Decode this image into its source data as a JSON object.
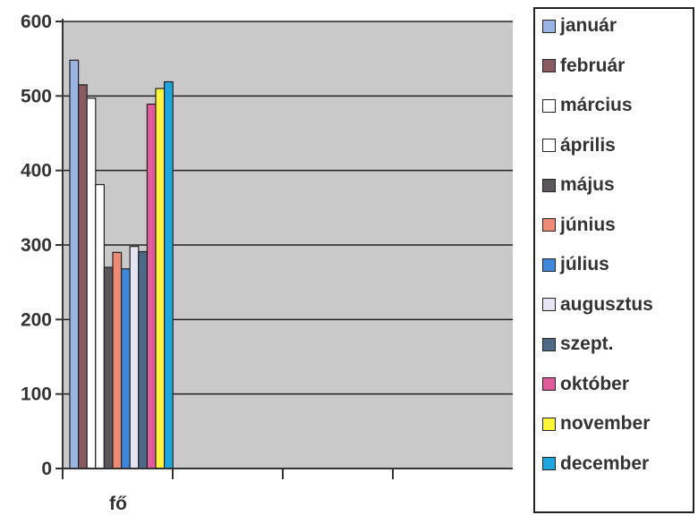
{
  "chart_data": {
    "type": "bar",
    "categories": [
      "fő"
    ],
    "series": [
      {
        "name": "január",
        "values": [
          548
        ],
        "color": "#9ab5e3"
      },
      {
        "name": "február",
        "values": [
          515
        ],
        "color": "#8a5a62"
      },
      {
        "name": "március",
        "values": [
          497
        ],
        "color": "#ffffff"
      },
      {
        "name": "április",
        "values": [
          381
        ],
        "color": "#ffffff"
      },
      {
        "name": "május",
        "values": [
          270
        ],
        "color": "#5a565c"
      },
      {
        "name": "június",
        "values": [
          290
        ],
        "color": "#ef8a76"
      },
      {
        "name": "július",
        "values": [
          268
        ],
        "color": "#3f87d9"
      },
      {
        "name": "augusztus",
        "values": [
          298
        ],
        "color": "#e4e6f3"
      },
      {
        "name": "szept.",
        "values": [
          291
        ],
        "color": "#4e6a86"
      },
      {
        "name": "október",
        "values": [
          489
        ],
        "color": "#e05c9c"
      },
      {
        "name": "november",
        "values": [
          510
        ],
        "color": "#fbf53c"
      },
      {
        "name": "december",
        "values": [
          519
        ],
        "color": "#1fa6df"
      }
    ],
    "yticks": [
      "0",
      "100",
      "200",
      "300",
      "400",
      "500",
      "600"
    ],
    "ylim": [
      0,
      600
    ],
    "grid": true,
    "legend_position": "right",
    "plot_background": "#c9c9c9",
    "title": "",
    "xlabel": "",
    "ylabel": ""
  }
}
